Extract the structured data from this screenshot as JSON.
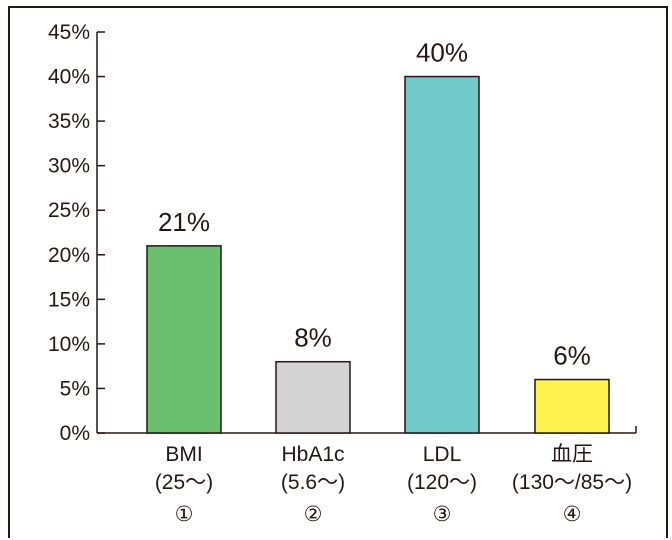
{
  "chart_data": {
    "type": "bar",
    "categories": [
      {
        "lines": [
          "BMI",
          "(25〜)",
          "①"
        ],
        "value": 21,
        "label": "21%",
        "color": "#6ac06f"
      },
      {
        "lines": [
          "HbA1c",
          "(5.6〜)",
          "②"
        ],
        "value": 8,
        "label": "8%",
        "color": "#d3d3d3"
      },
      {
        "lines": [
          "LDL",
          "(120〜)",
          "③"
        ],
        "value": 40,
        "label": "40%",
        "color": "#72c9c9"
      },
      {
        "lines": [
          "血圧",
          "(130〜/85〜)",
          "④"
        ],
        "value": 6,
        "label": "6%",
        "color": "#fff44f"
      }
    ],
    "yticks": [
      "0%",
      "5%",
      "10%",
      "15%",
      "20%",
      "25%",
      "30%",
      "35%",
      "40%",
      "45%"
    ],
    "ylim": [
      0,
      45
    ],
    "ystep": 5,
    "grid": false,
    "legend": "none"
  }
}
